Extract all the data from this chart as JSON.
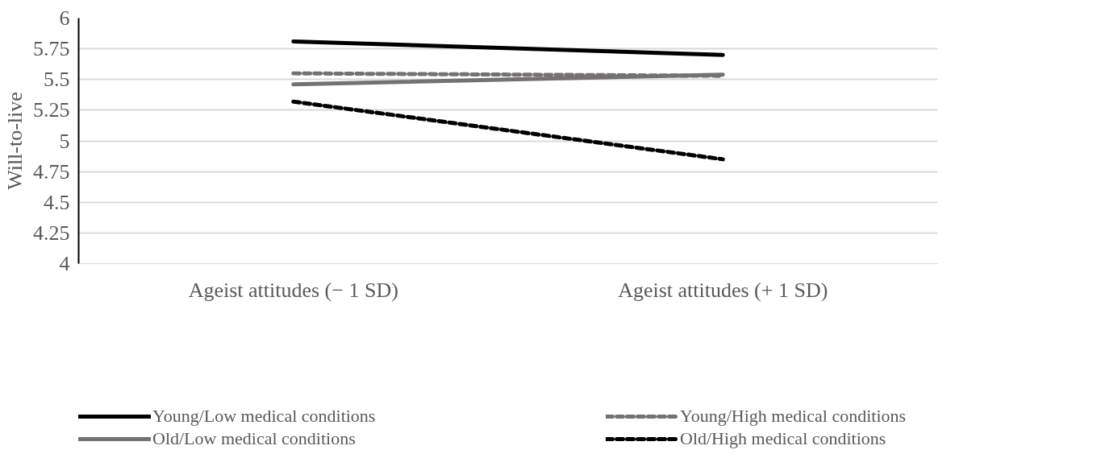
{
  "chart_data": {
    "type": "line",
    "ylabel": "Will-to-live",
    "categories": [
      "Ageist attitudes (− 1 SD)",
      "Ageist attitudes (+ 1 SD)"
    ],
    "series": [
      {
        "name": "Young/Low medical conditions",
        "color": "#000000",
        "line_style": "solid",
        "values": [
          5.81,
          5.7
        ]
      },
      {
        "name": "Young/High medical conditions",
        "color": "#767171",
        "line_style": "dashed",
        "values": [
          5.55,
          5.53
        ]
      },
      {
        "name": "Old/Low medical conditions",
        "color": "#767171",
        "line_style": "solid",
        "values": [
          5.46,
          5.54
        ]
      },
      {
        "name": "Old/High medical conditions",
        "color": "#000000",
        "line_style": "dashed",
        "values": [
          5.32,
          4.85
        ]
      }
    ],
    "ylim": [
      4,
      6
    ],
    "yticks": [
      4,
      4.25,
      4.5,
      4.75,
      5,
      5.25,
      5.5,
      5.75,
      6
    ],
    "grid": "y",
    "legend": "bottom",
    "marker": "none"
  }
}
